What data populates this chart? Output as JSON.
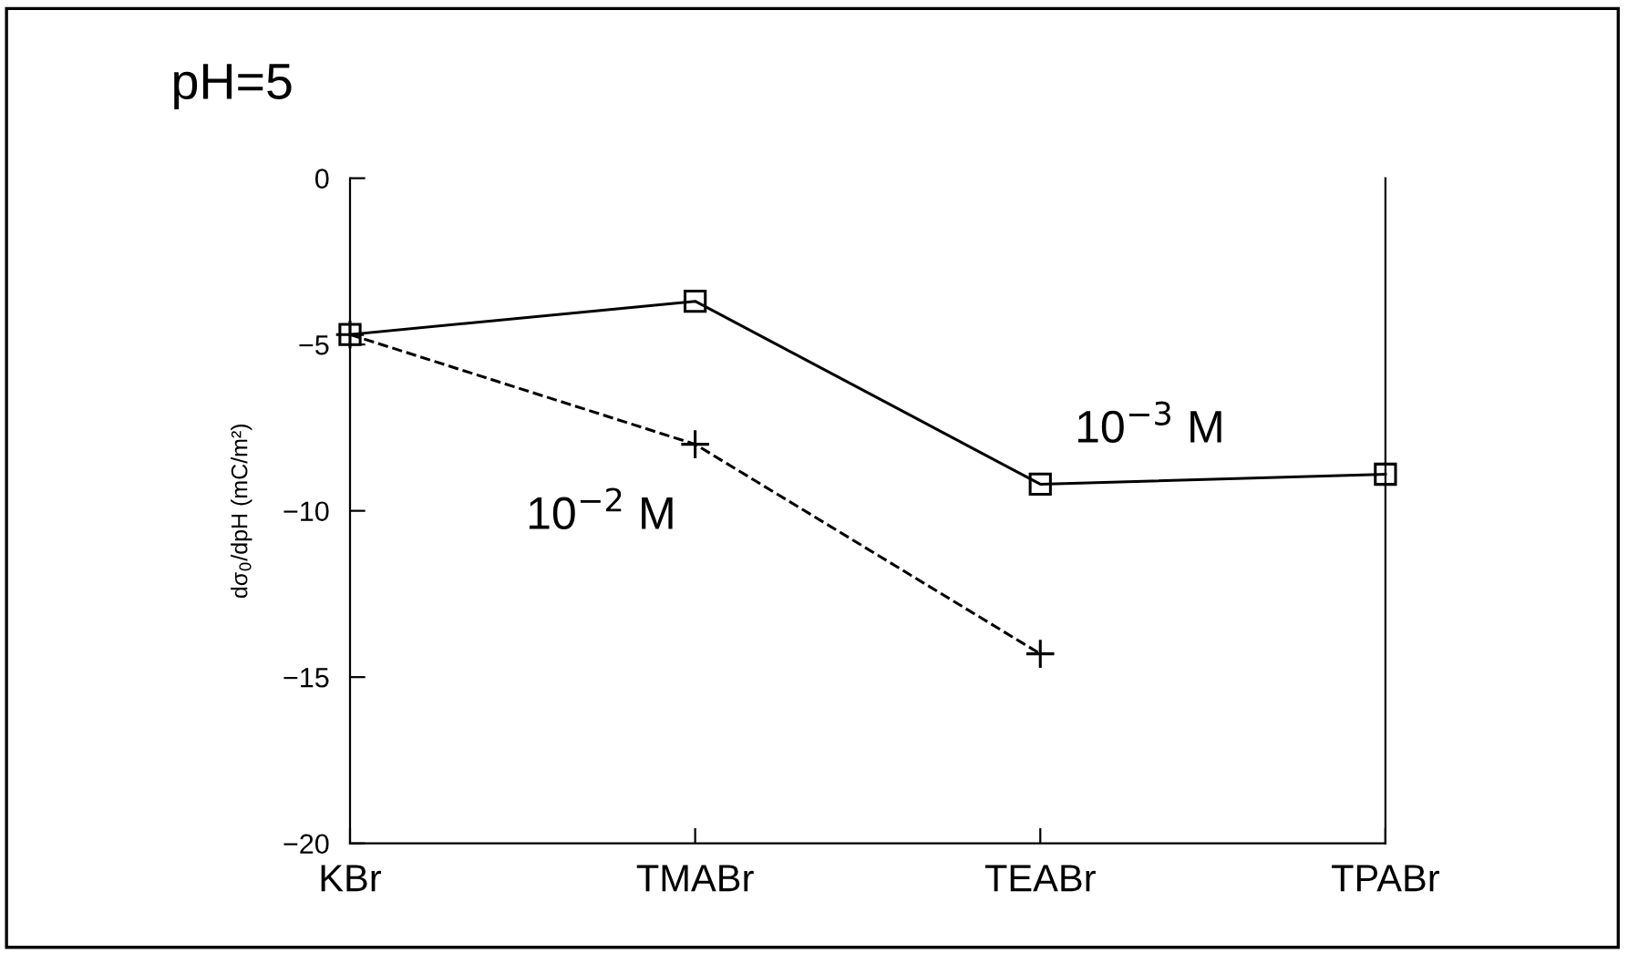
{
  "chart_data": {
    "type": "line",
    "title": "pH=5",
    "ylabel": "dσ$_{0}$/dpH (mC/m²)",
    "categories": [
      "KBr",
      "TMABr",
      "TEABr",
      "TPABr"
    ],
    "series": [
      {
        "name": "10$^{−3}$ M",
        "color": "#000000",
        "values": [
          -4.7,
          -3.7,
          -9.2,
          -8.9
        ],
        "marker": "square",
        "line_style": "solid"
      },
      {
        "name": "10$^{−2}$ M",
        "color": "#000000",
        "values": [
          -4.7,
          -8.0,
          -14.3,
          null
        ],
        "marker": "cross",
        "line_style": "dashed"
      }
    ],
    "ylim": [
      -20,
      0
    ],
    "yticks": [
      0,
      -5,
      -10,
      -15,
      -20
    ],
    "grid": false,
    "legend": false
  }
}
